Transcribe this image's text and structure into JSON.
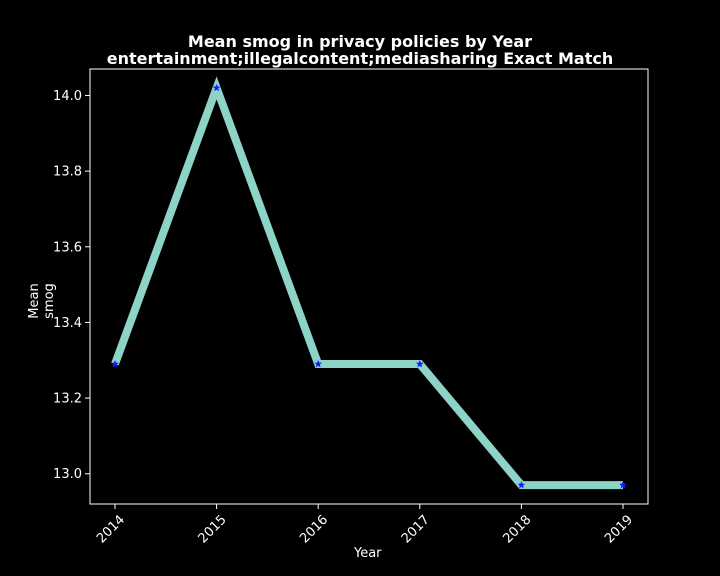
{
  "chart_data": {
    "type": "line",
    "title": "Mean smog in privacy policies by Year",
    "subtitle": "entertainment;illegalcontent;mediasharing Exact Match",
    "xlabel": "Year",
    "ylabel": "Mean smog",
    "categories": [
      "2014",
      "2015",
      "2016",
      "2017",
      "2018",
      "2019"
    ],
    "values": [
      13.29,
      14.02,
      13.29,
      13.29,
      12.97,
      12.97
    ],
    "ylim": [
      12.92,
      14.07
    ],
    "yticks": [
      "13.0",
      "13.2",
      "13.4",
      "13.6",
      "13.8",
      "14.0"
    ],
    "grid": false,
    "colors": {
      "background": "#000000",
      "line": "#8dd3c7",
      "marker": "#1a1aff",
      "axes": "#ffffff",
      "text": "#ffffff"
    }
  }
}
